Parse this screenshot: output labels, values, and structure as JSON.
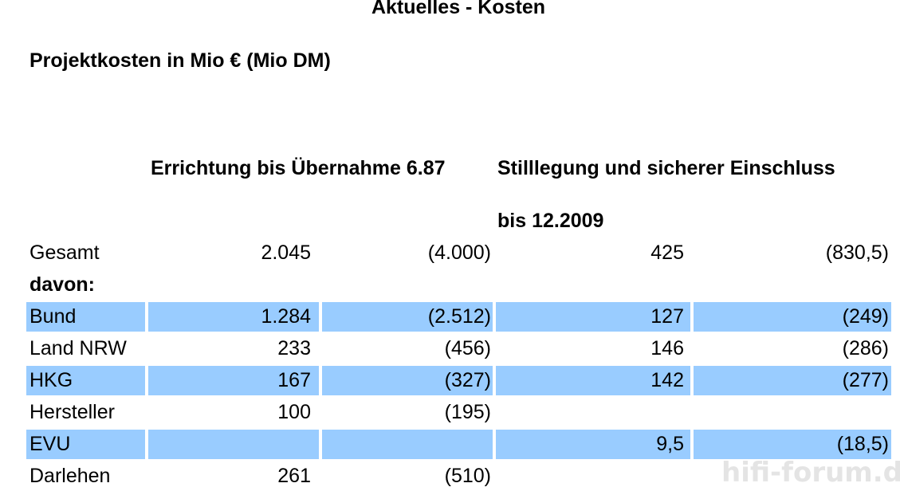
{
  "title": "Aktuelles - Kosten",
  "subtitle": "Projektkosten in Mio € (Mio DM)",
  "headers": {
    "col1": "Errichtung bis Übernahme 6.87",
    "col2_line1": "Stilllegung und sicherer Einschluss",
    "col2_line2": "bis 12.2009"
  },
  "rows": [
    {
      "label": "Gesamt",
      "v1": "2.045",
      "v2": "(4.000)",
      "v3": "425",
      "v4": "(830,5)"
    },
    {
      "label": "davon:",
      "v1": "",
      "v2": "",
      "v3": "",
      "v4": ""
    },
    {
      "label": "Bund",
      "v1": "1.284",
      "v2": "(2.512)",
      "v3": "127",
      "v4": "(249)"
    },
    {
      "label": "Land NRW",
      "v1": "233",
      "v2": "(456)",
      "v3": "146",
      "v4": "(286)"
    },
    {
      "label": "HKG",
      "v1": "167",
      "v2": "(327)",
      "v3": "142",
      "v4": "(277)"
    },
    {
      "label": "Hersteller",
      "v1": "100",
      "v2": "(195)",
      "v3": "",
      "v4": ""
    },
    {
      "label": "EVU",
      "v1": "",
      "v2": "",
      "v3": "9,5",
      "v4": "(18,5)"
    },
    {
      "label": "Darlehen",
      "v1": "261",
      "v2": "(510)",
      "v3": "",
      "v4": ""
    }
  ],
  "highlight_color": "#99ccff",
  "watermark": "hifi-forum.de"
}
